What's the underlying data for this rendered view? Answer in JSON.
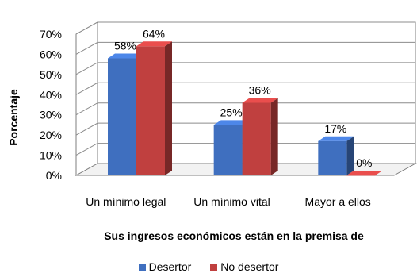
{
  "chart_data": {
    "type": "bar",
    "categories": [
      "Un mínimo legal",
      "Un mínimo vital",
      "Mayor a ellos"
    ],
    "series": [
      {
        "name": "Desertor",
        "values": [
          58,
          25,
          17
        ],
        "labels": [
          "58%",
          "25%",
          "17%"
        ],
        "color": "#3f6fbf"
      },
      {
        "name": "No desertor",
        "values": [
          64,
          36,
          0
        ],
        "labels": [
          "64%",
          "36%",
          "0%"
        ],
        "color": "#c0403f"
      }
    ],
    "yticks": [
      "0%",
      "10%",
      "20%",
      "30%",
      "40%",
      "50%",
      "60%",
      "70%"
    ],
    "ylim": [
      0,
      70
    ],
    "xlabel": "Sus ingresos económicos están en la premisa de",
    "ylabel": "Porcentaje",
    "grid": true,
    "legend_position": "bottom",
    "style": "3d-clustered-column"
  }
}
